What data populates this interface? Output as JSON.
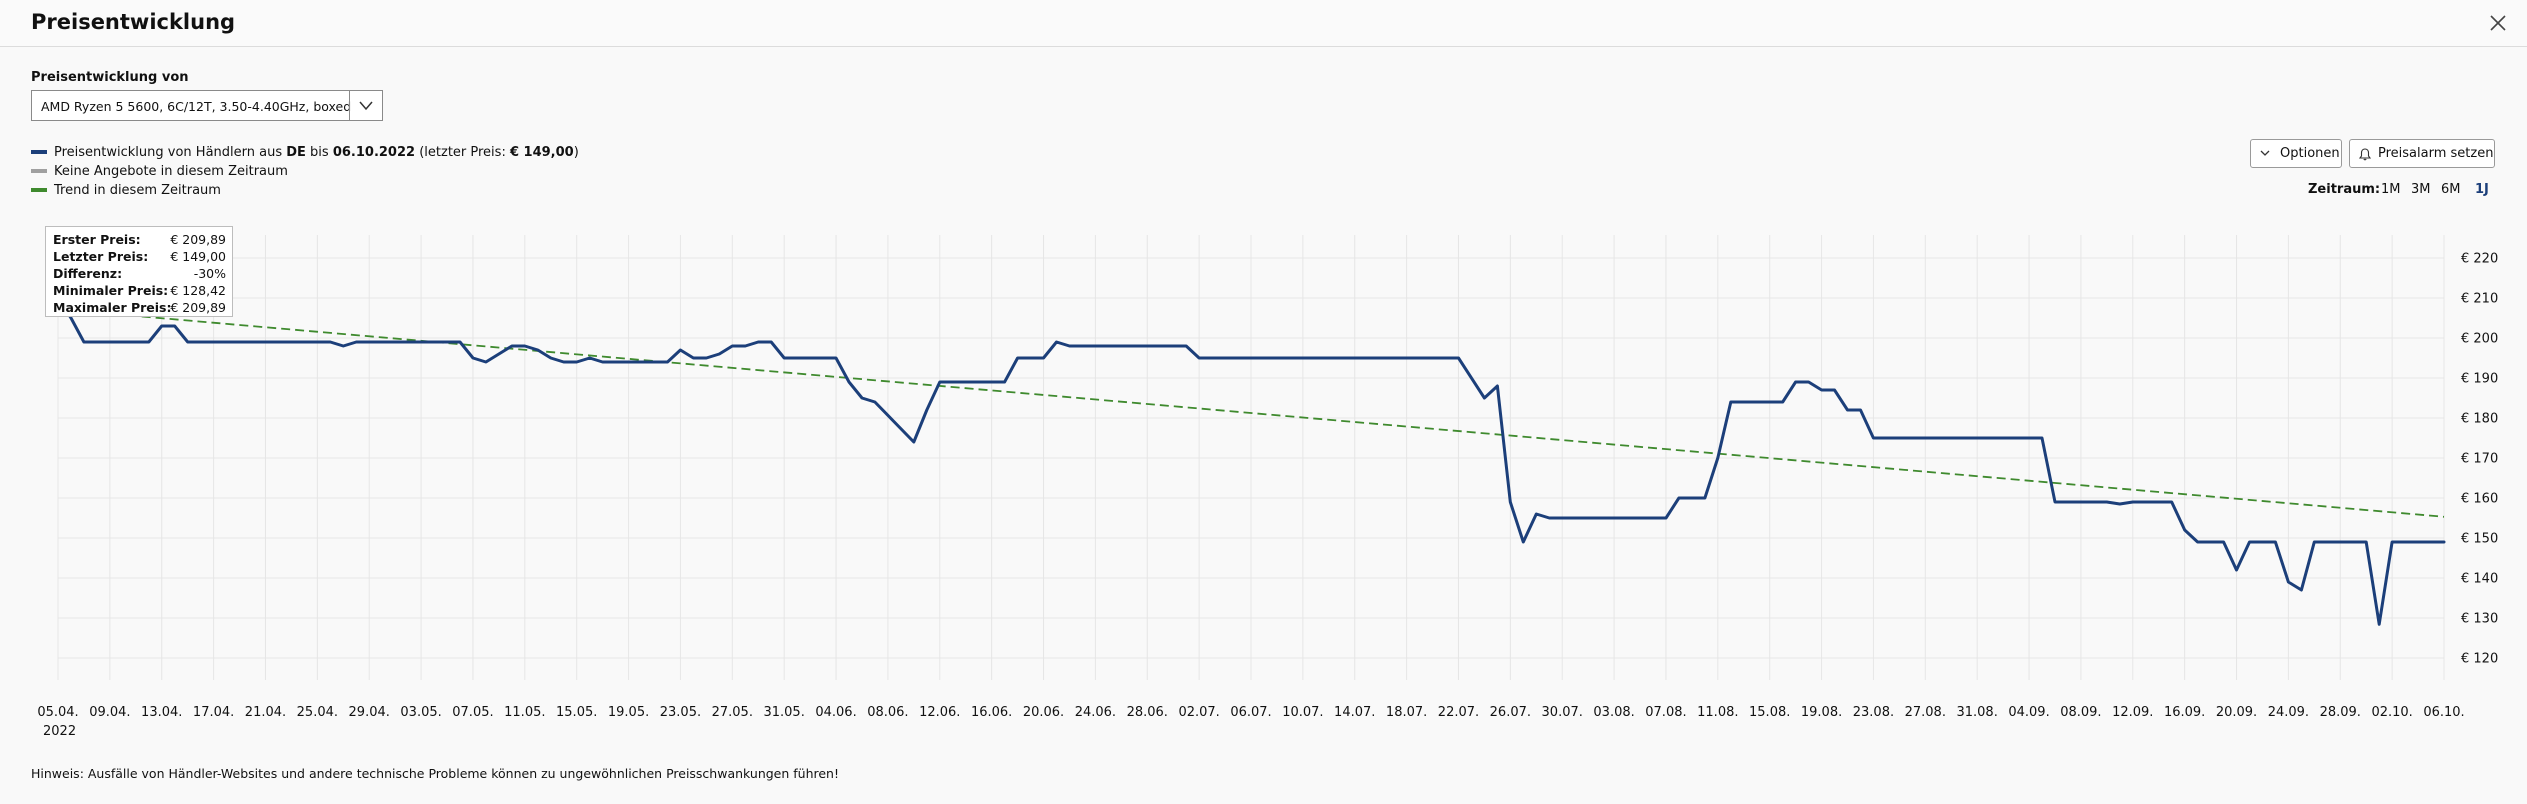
{
  "header": {
    "title": "Preisentwicklung"
  },
  "selector": {
    "label": "Preisentwicklung von",
    "value": "AMD Ryzen 5 5600, 6C/12T, 3.50-4.40GHz, boxed"
  },
  "legend": {
    "price_prefix": "Preisentwicklung von Händlern aus ",
    "country": "DE",
    "until_word": " bis ",
    "date": "06.10.2022",
    "last_price_prefix": " (letzter Preis: ",
    "last_price": "€ 149,00",
    "last_price_suffix": ")",
    "no_offers": "Keine Angebote in diesem Zeitraum",
    "trend": "Trend in diesem Zeitraum"
  },
  "buttons": {
    "options": "Optionen",
    "alarm": "Preisalarm setzen"
  },
  "zeitraum": {
    "label": "Zeitraum:",
    "options": [
      "1M",
      "3M",
      "6M",
      "1J"
    ],
    "active": "1J"
  },
  "tooltip": [
    {
      "label": "Erster Preis:",
      "value": "€ 209,89"
    },
    {
      "label": "Letzter Preis:",
      "value": "€ 149,00"
    },
    {
      "label": "Differenz:",
      "value": "-30%"
    },
    {
      "label": "Minimaler Preis:",
      "value": "€ 128,42"
    },
    {
      "label": "Maximaler Preis:",
      "value": "€ 209,89"
    }
  ],
  "note": "Hinweis: Ausfälle von Händler-Websites und andere technische Probleme können zu ungewöhnlichen Preisschwankungen führen!",
  "colors": {
    "price_line": "#1c3f7a",
    "trend_line": "#3f8a2e",
    "no_offers": "#a0a0a0",
    "grid": "#e6e6e6",
    "active_link": "#1c3f7a"
  },
  "chart_data": {
    "type": "line",
    "x_start": "05.04.2022",
    "x_end": "06.10.2022",
    "ylim": [
      115,
      225
    ],
    "y_ticks": [
      120,
      130,
      140,
      150,
      160,
      170,
      180,
      190,
      200,
      210,
      220
    ],
    "y_tick_labels": [
      "€ 120",
      "€ 130",
      "€ 140",
      "€ 150",
      "€ 160",
      "€ 170",
      "€ 180",
      "€ 190",
      "€ 200",
      "€ 210",
      "€ 220"
    ],
    "x_tick_labels": [
      "05.04.",
      "09.04.",
      "13.04.",
      "17.04.",
      "21.04.",
      "25.04.",
      "29.04.",
      "03.05.",
      "07.05.",
      "11.05.",
      "15.05.",
      "19.05.",
      "23.05.",
      "27.05.",
      "31.05.",
      "04.06.",
      "08.06.",
      "12.06.",
      "16.06.",
      "20.06.",
      "24.06.",
      "28.06.",
      "02.07.",
      "06.07.",
      "10.07.",
      "14.07.",
      "18.07.",
      "22.07.",
      "26.07.",
      "30.07.",
      "03.08.",
      "07.08.",
      "11.08.",
      "15.08.",
      "19.08.",
      "23.08.",
      "27.08.",
      "31.08.",
      "04.09.",
      "08.09.",
      "12.09.",
      "16.09.",
      "20.09.",
      "24.09.",
      "28.09.",
      "02.10.",
      "06.10."
    ],
    "x_year_label": "2022",
    "series": [
      {
        "values": [
          [
            "05.04.2022",
            209.89
          ],
          [
            "06.04.2022",
            205
          ],
          [
            "07.04.2022",
            199
          ],
          [
            "10.04.2022",
            199
          ],
          [
            "12.04.2022",
            199
          ],
          [
            "13.04.2022",
            203
          ],
          [
            "14.04.2022",
            203
          ],
          [
            "15.04.2022",
            199
          ],
          [
            "22.04.2022",
            199
          ],
          [
            "26.04.2022",
            199
          ],
          [
            "27.04.2022",
            198
          ],
          [
            "28.04.2022",
            199
          ],
          [
            "05.05.2022",
            199
          ],
          [
            "06.05.2022",
            199
          ],
          [
            "07.05.2022",
            195
          ],
          [
            "08.05.2022",
            194
          ],
          [
            "10.05.2022",
            198
          ],
          [
            "11.05.2022",
            198
          ],
          [
            "12.05.2022",
            197
          ],
          [
            "13.05.2022",
            195
          ],
          [
            "14.05.2022",
            194
          ],
          [
            "15.05.2022",
            194
          ],
          [
            "16.05.2022",
            195
          ],
          [
            "17.05.2022",
            194
          ],
          [
            "22.05.2022",
            194
          ],
          [
            "23.05.2022",
            197
          ],
          [
            "24.05.2022",
            195
          ],
          [
            "25.05.2022",
            195
          ],
          [
            "26.05.2022",
            196
          ],
          [
            "27.05.2022",
            198
          ],
          [
            "28.05.2022",
            198
          ],
          [
            "29.05.2022",
            199
          ],
          [
            "30.05.2022",
            199
          ],
          [
            "31.05.2022",
            195
          ],
          [
            "03.06.2022",
            195
          ],
          [
            "04.06.2022",
            195
          ],
          [
            "05.06.2022",
            189
          ],
          [
            "06.06.2022",
            185
          ],
          [
            "07.06.2022",
            184
          ],
          [
            "10.06.2022",
            174
          ],
          [
            "11.06.2022",
            182
          ],
          [
            "12.06.2022",
            189
          ],
          [
            "17.06.2022",
            189
          ],
          [
            "18.06.2022",
            195
          ],
          [
            "20.06.2022",
            195
          ],
          [
            "21.06.2022",
            199
          ],
          [
            "22.06.2022",
            198
          ],
          [
            "01.07.2022",
            198
          ],
          [
            "02.07.2022",
            195
          ],
          [
            "22.07.2022",
            195
          ],
          [
            "24.07.2022",
            185
          ],
          [
            "25.07.2022",
            188
          ],
          [
            "26.07.2022",
            159
          ],
          [
            "27.07.2022",
            149
          ],
          [
            "28.07.2022",
            156
          ],
          [
            "29.07.2022",
            155
          ],
          [
            "07.08.2022",
            155
          ],
          [
            "08.08.2022",
            160
          ],
          [
            "10.08.2022",
            160
          ],
          [
            "11.08.2022",
            170
          ],
          [
            "12.08.2022",
            184
          ],
          [
            "16.08.2022",
            184
          ],
          [
            "17.08.2022",
            189
          ],
          [
            "18.08.2022",
            189
          ],
          [
            "19.08.2022",
            187
          ],
          [
            "20.08.2022",
            187
          ],
          [
            "21.08.2022",
            182
          ],
          [
            "22.08.2022",
            182
          ],
          [
            "23.08.2022",
            175
          ],
          [
            "05.09.2022",
            175
          ],
          [
            "06.09.2022",
            159
          ],
          [
            "10.09.2022",
            159
          ],
          [
            "11.09.2022",
            158.5
          ],
          [
            "12.09.2022",
            159
          ],
          [
            "15.09.2022",
            159
          ],
          [
            "16.09.2022",
            152
          ],
          [
            "17.09.2022",
            149
          ],
          [
            "19.09.2022",
            149
          ],
          [
            "20.09.2022",
            142
          ],
          [
            "21.09.2022",
            149
          ],
          [
            "23.09.2022",
            149
          ],
          [
            "24.09.2022",
            139
          ],
          [
            "25.09.2022",
            137
          ],
          [
            "26.09.2022",
            149
          ],
          [
            "30.09.2022",
            149
          ],
          [
            "01.10.2022",
            128.42
          ],
          [
            "02.10.2022",
            149
          ],
          [
            "06.10.2022",
            149
          ]
        ]
      },
      {
        "values": [
          [
            "05.04.2022",
            207.2
          ],
          [
            "06.10.2022",
            155.3
          ]
        ]
      }
    ]
  }
}
